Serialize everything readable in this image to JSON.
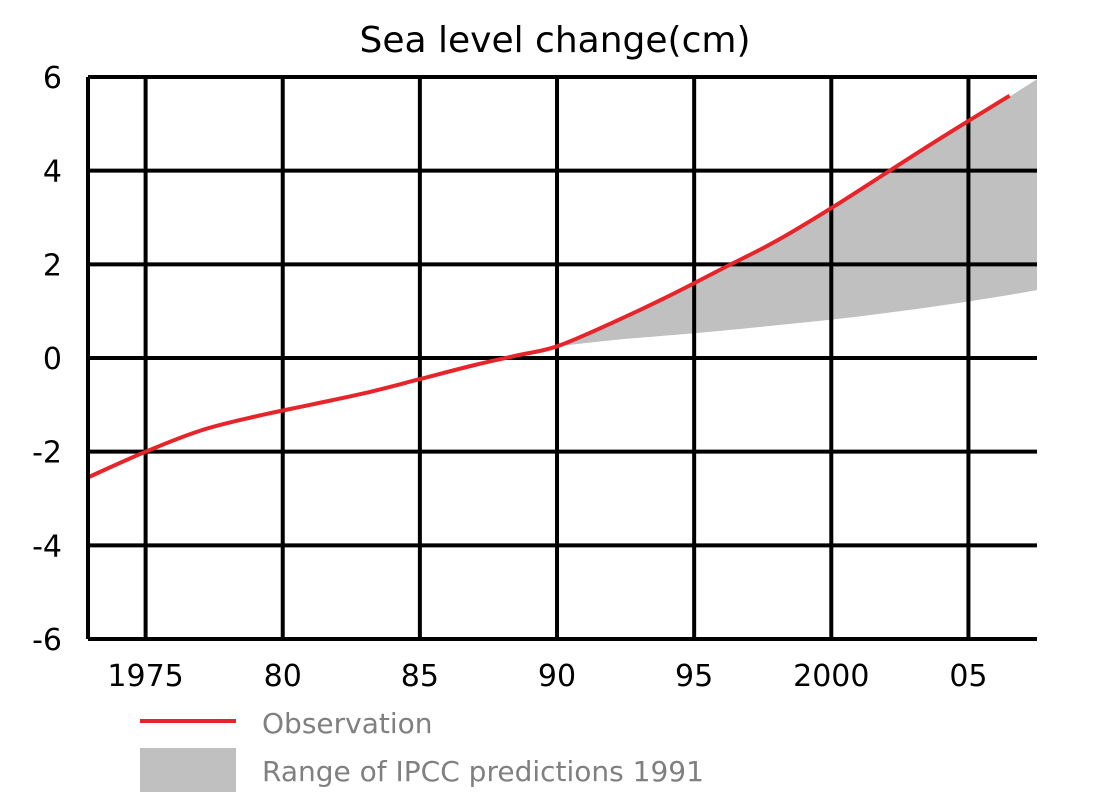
{
  "chart_data": {
    "type": "line",
    "title": "Sea level change(cm)",
    "xlabel": "",
    "ylabel": "",
    "xlim": [
      1972.9,
      2007.5
    ],
    "ylim": [
      -6,
      6
    ],
    "grid": true,
    "legend_placement": "bottom-left",
    "x_ticks": [
      {
        "value": 1975,
        "label": "1975"
      },
      {
        "value": 1980,
        "label": "80"
      },
      {
        "value": 1985,
        "label": "85"
      },
      {
        "value": 1990,
        "label": "90"
      },
      {
        "value": 1995,
        "label": "95"
      },
      {
        "value": 2000,
        "label": "2000"
      },
      {
        "value": 2005,
        "label": "05"
      }
    ],
    "y_ticks": [
      {
        "value": 6,
        "label": "6"
      },
      {
        "value": 4,
        "label": "4"
      },
      {
        "value": 2,
        "label": "2"
      },
      {
        "value": 0,
        "label": "0"
      },
      {
        "value": -2,
        "label": "-2"
      },
      {
        "value": -4,
        "label": "-4"
      },
      {
        "value": -6,
        "label": "-6"
      }
    ],
    "series": [
      {
        "name": "Observation",
        "type": "line",
        "color": "#e8242b",
        "x": [
          1972.9,
          1975,
          1977,
          1979,
          1981,
          1983,
          1985,
          1987,
          1988.5,
          1990,
          1992,
          1994,
          1996,
          1998,
          2000,
          2002,
          2004,
          2006.5
        ],
        "y": [
          -2.55,
          -2.0,
          -1.55,
          -1.25,
          -1.0,
          -0.75,
          -0.45,
          -0.15,
          0.05,
          0.25,
          0.75,
          1.3,
          1.9,
          2.5,
          3.2,
          3.95,
          4.7,
          5.6
        ]
      },
      {
        "name": "Range of IPCC predictions 1991",
        "type": "area",
        "color": "#c0c0c0",
        "x": [
          1990,
          1992,
          1994,
          1996,
          1998,
          2000,
          2002,
          2004,
          2006,
          2007.5
        ],
        "upper": [
          0.25,
          0.75,
          1.3,
          1.9,
          2.5,
          3.2,
          3.95,
          4.7,
          5.4,
          5.95
        ],
        "lower": [
          0.25,
          0.38,
          0.48,
          0.58,
          0.7,
          0.82,
          0.96,
          1.12,
          1.3,
          1.45
        ]
      }
    ]
  }
}
